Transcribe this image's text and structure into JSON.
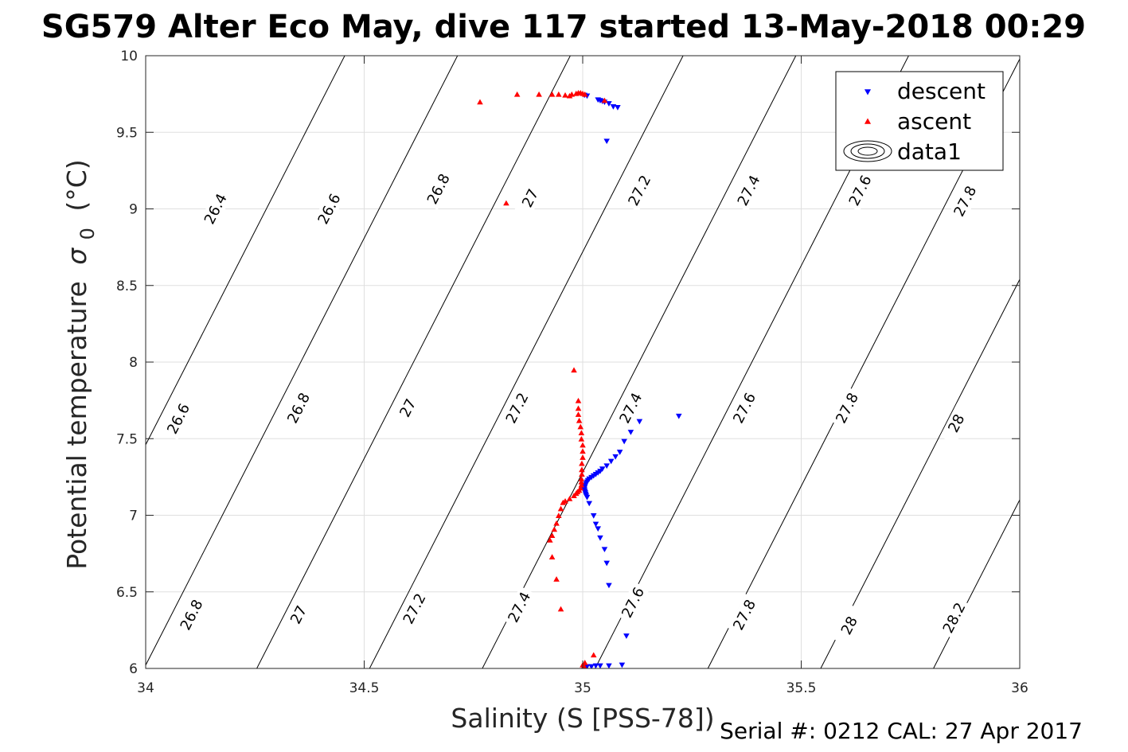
{
  "chart_data": {
    "type": "scatter",
    "title": "SG579 Alter Eco May, dive 117 started 13-May-2018 00:29",
    "xlabel": "Salinity (S [PSS-78])",
    "ylabel": "Potential temperature",
    "ylabel_symbol": "σ",
    "ylabel_subscript": "0",
    "ylabel_unit": "(°C)",
    "xlim": [
      34,
      36
    ],
    "ylim": [
      6,
      10
    ],
    "x_ticks": [
      34,
      34.5,
      35,
      35.5,
      36
    ],
    "x_tick_labels": [
      "34",
      "34.5",
      "35",
      "35.5",
      "36"
    ],
    "y_ticks": [
      6,
      6.5,
      7,
      7.5,
      8,
      8.5,
      9,
      9.5,
      10
    ],
    "y_tick_labels": [
      "6",
      "6.5",
      "7",
      "7.5",
      "8",
      "8.5",
      "9",
      "9.5",
      "10"
    ],
    "grid": true,
    "legend_position": "top-right",
    "legend": [
      {
        "label": "descent",
        "marker": "triangle-down",
        "color": "#0000ff"
      },
      {
        "label": "ascent",
        "marker": "triangle-up",
        "color": "#ff0000"
      },
      {
        "label": "data1",
        "marker": "contour",
        "color": "#000000"
      }
    ],
    "series": [
      {
        "name": "descent",
        "color": "#0000ff",
        "marker": "triangle-down",
        "points": [
          [
            35.004,
            9.745
          ],
          [
            35.01,
            9.74
          ],
          [
            35.035,
            9.715
          ],
          [
            35.04,
            9.71
          ],
          [
            35.045,
            9.705
          ],
          [
            35.05,
            9.7
          ],
          [
            35.06,
            9.69
          ],
          [
            35.07,
            9.67
          ],
          [
            35.08,
            9.665
          ],
          [
            35.055,
            9.445
          ],
          [
            35.22,
            7.65
          ],
          [
            35.13,
            7.615
          ],
          [
            35.11,
            7.545
          ],
          [
            35.095,
            7.485
          ],
          [
            35.085,
            7.415
          ],
          [
            35.075,
            7.385
          ],
          [
            35.065,
            7.355
          ],
          [
            35.055,
            7.325
          ],
          [
            35.045,
            7.305
          ],
          [
            35.04,
            7.29
          ],
          [
            35.035,
            7.28
          ],
          [
            35.03,
            7.27
          ],
          [
            35.025,
            7.26
          ],
          [
            35.02,
            7.25
          ],
          [
            35.015,
            7.24
          ],
          [
            35.012,
            7.23
          ],
          [
            35.01,
            7.22
          ],
          [
            35.008,
            7.21
          ],
          [
            35.006,
            7.2
          ],
          [
            35.005,
            7.19
          ],
          [
            35.004,
            7.18
          ],
          [
            35.004,
            7.17
          ],
          [
            35.005,
            7.16
          ],
          [
            35.006,
            7.15
          ],
          [
            35.007,
            7.14
          ],
          [
            35.008,
            7.13
          ],
          [
            35.01,
            7.12
          ],
          [
            35.015,
            7.08
          ],
          [
            35.025,
            7.0
          ],
          [
            35.03,
            6.945
          ],
          [
            35.035,
            6.915
          ],
          [
            35.04,
            6.855
          ],
          [
            35.05,
            6.78
          ],
          [
            35.055,
            6.69
          ],
          [
            35.06,
            6.545
          ],
          [
            35.1,
            6.215
          ],
          [
            35.09,
            6.025
          ],
          [
            35.06,
            6.02
          ],
          [
            35.04,
            6.02
          ],
          [
            35.03,
            6.02
          ],
          [
            35.02,
            6.015
          ],
          [
            35.01,
            6.015
          ],
          [
            35.005,
            6.012
          ]
        ]
      },
      {
        "name": "ascent",
        "color": "#ff0000",
        "marker": "triangle-up",
        "points": [
          [
            34.765,
            9.695
          ],
          [
            34.85,
            9.745
          ],
          [
            34.9,
            9.745
          ],
          [
            34.93,
            9.745
          ],
          [
            34.945,
            9.745
          ],
          [
            34.96,
            9.74
          ],
          [
            34.97,
            9.735
          ],
          [
            34.975,
            9.745
          ],
          [
            34.985,
            9.75
          ],
          [
            34.99,
            9.755
          ],
          [
            34.995,
            9.755
          ],
          [
            35.0,
            9.75
          ],
          [
            35.005,
            9.745
          ],
          [
            35.05,
            9.705
          ],
          [
            34.825,
            9.035
          ],
          [
            34.98,
            7.945
          ],
          [
            34.99,
            7.745
          ],
          [
            34.99,
            7.695
          ],
          [
            34.99,
            7.655
          ],
          [
            34.992,
            7.615
          ],
          [
            34.995,
            7.575
          ],
          [
            34.997,
            7.535
          ],
          [
            34.997,
            7.495
          ],
          [
            35.0,
            7.455
          ],
          [
            35.0,
            7.415
          ],
          [
            35.0,
            7.375
          ],
          [
            34.998,
            7.335
          ],
          [
            34.998,
            7.295
          ],
          [
            34.998,
            7.265
          ],
          [
            34.997,
            7.235
          ],
          [
            34.997,
            7.215
          ],
          [
            34.997,
            7.195
          ],
          [
            34.995,
            7.175
          ],
          [
            34.992,
            7.16
          ],
          [
            34.988,
            7.15
          ],
          [
            34.985,
            7.14
          ],
          [
            34.98,
            7.125
          ],
          [
            34.97,
            7.105
          ],
          [
            34.96,
            7.09
          ],
          [
            34.955,
            7.08
          ],
          [
            34.95,
            7.04
          ],
          [
            34.945,
            6.995
          ],
          [
            34.94,
            6.945
          ],
          [
            34.935,
            6.905
          ],
          [
            34.93,
            6.865
          ],
          [
            34.925,
            6.835
          ],
          [
            34.93,
            6.725
          ],
          [
            34.94,
            6.58
          ],
          [
            34.95,
            6.385
          ],
          [
            35.025,
            6.085
          ],
          [
            35.005,
            6.035
          ],
          [
            35.0,
            6.02
          ],
          [
            35.003,
            6.012
          ]
        ]
      }
    ],
    "isopycnals": [
      {
        "value": 26.4,
        "label": "26.4"
      },
      {
        "value": 26.6,
        "label": "26.6"
      },
      {
        "value": 26.8,
        "label": "26.8"
      },
      {
        "value": 27.0,
        "label": "27"
      },
      {
        "value": 27.2,
        "label": "27.2"
      },
      {
        "value": 27.4,
        "label": "27.4"
      },
      {
        "value": 27.6,
        "label": "27.6"
      },
      {
        "value": 27.8,
        "label": "27.8"
      },
      {
        "value": 28.0,
        "label": "28"
      },
      {
        "value": 28.2,
        "label": "28.2"
      }
    ],
    "isopycnal_labels": [
      {
        "label": "26.4",
        "s": 34.16,
        "t": 9.0
      },
      {
        "label": "26.6",
        "s": 34.42,
        "t": 9.0
      },
      {
        "label": "26.8",
        "s": 34.67,
        "t": 9.13
      },
      {
        "label": "27",
        "s": 34.88,
        "t": 9.07
      },
      {
        "label": "27.2",
        "s": 35.13,
        "t": 9.12
      },
      {
        "label": "27.4",
        "s": 35.38,
        "t": 9.12
      },
      {
        "label": "27.6",
        "s": 35.635,
        "t": 9.12
      },
      {
        "label": "27.8",
        "s": 35.875,
        "t": 9.05
      },
      {
        "label": "26.6",
        "s": 34.075,
        "t": 7.63
      },
      {
        "label": "26.8",
        "s": 34.35,
        "t": 7.7
      },
      {
        "label": "27",
        "s": 34.6,
        "t": 7.7
      },
      {
        "label": "27.2",
        "s": 34.85,
        "t": 7.7
      },
      {
        "label": "27.4",
        "s": 35.11,
        "t": 7.7
      },
      {
        "label": "27.6",
        "s": 35.37,
        "t": 7.7
      },
      {
        "label": "27.8",
        "s": 35.605,
        "t": 7.7
      },
      {
        "label": "28",
        "s": 35.855,
        "t": 7.6
      },
      {
        "label": "26.8",
        "s": 34.105,
        "t": 6.35
      },
      {
        "label": "27",
        "s": 34.35,
        "t": 6.35
      },
      {
        "label": "27.2",
        "s": 34.615,
        "t": 6.39
      },
      {
        "label": "27.4",
        "s": 34.855,
        "t": 6.4
      },
      {
        "label": "27.6",
        "s": 35.115,
        "t": 6.43
      },
      {
        "label": "27.8",
        "s": 35.37,
        "t": 6.35
      },
      {
        "label": "28",
        "s": 35.61,
        "t": 6.28
      },
      {
        "label": "28.2",
        "s": 35.85,
        "t": 6.33
      }
    ]
  },
  "footer": {
    "serial_text": "Serial #: 0212  CAL: 27 Apr 2017"
  }
}
